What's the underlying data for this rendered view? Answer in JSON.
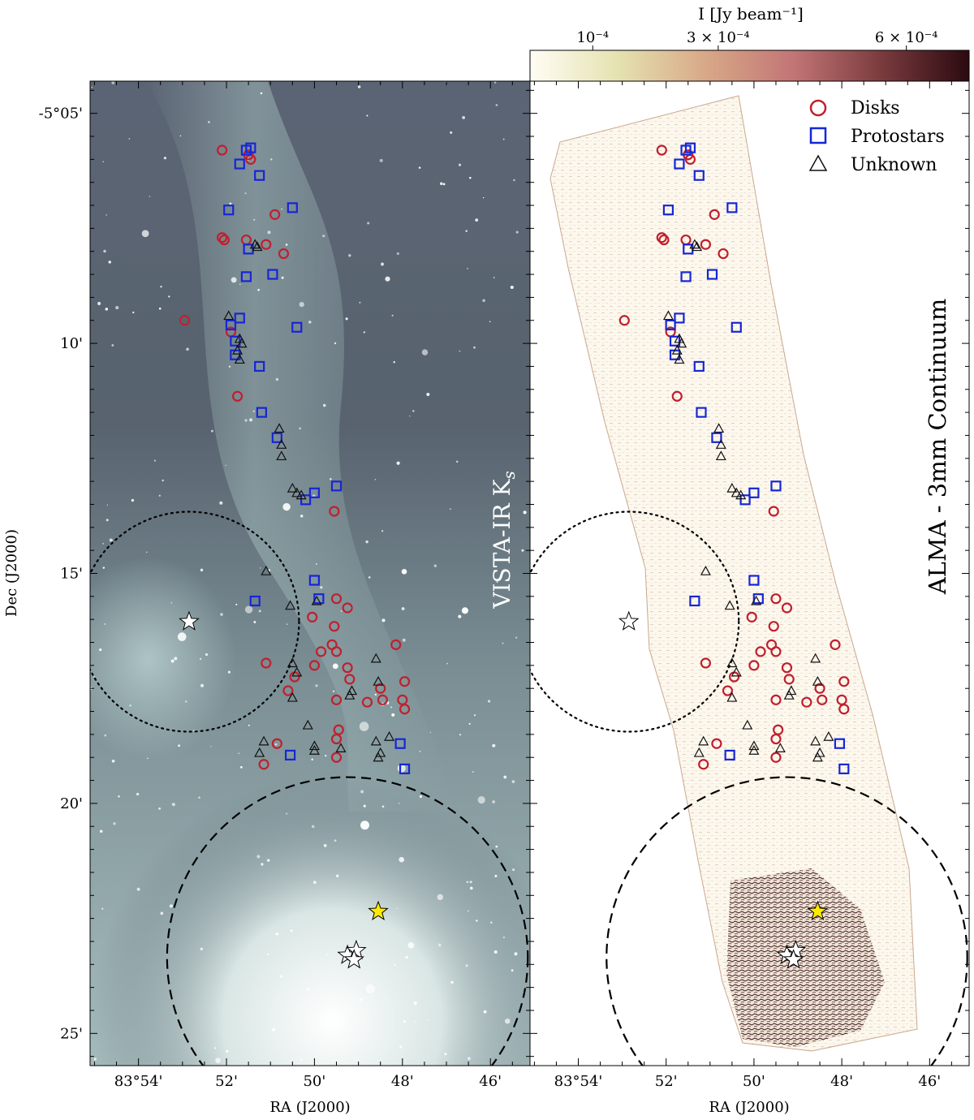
{
  "chart_data": {
    "type": "scatter",
    "colorbar": {
      "label": "I [Jy beam⁻¹]",
      "range": [
        0,
        0.0007
      ],
      "ticks": [
        {
          "value": 0.0001,
          "label": "10⁻⁴"
        },
        {
          "value": 0.0003,
          "label": "3 × 10⁻⁴"
        },
        {
          "value": 0.0006,
          "label": "6 × 10⁻⁴"
        }
      ],
      "colors": [
        "#fffdf4",
        "#e5e2b0",
        "#d8a888",
        "#c27575",
        "#7a3b3e",
        "#2b0a10"
      ]
    },
    "panels": [
      {
        "id": "left",
        "label": "VISTA-IR K",
        "label_sub": "s"
      },
      {
        "id": "right",
        "label": "ALMA - 3mm Continuum"
      }
    ],
    "axes": {
      "xlabel": "RA (J2000)",
      "ylabel": "Dec (J2000)",
      "xlim_arcmin": [
        55.1,
        45.1
      ],
      "ylim_arcmin": [
        4.3,
        25.7
      ],
      "x_ticks": [
        {
          "value": 54,
          "label": "83°54'"
        },
        {
          "value": 52,
          "label": "52'"
        },
        {
          "value": 50,
          "label": "50'"
        },
        {
          "value": 48,
          "label": "48'"
        },
        {
          "value": 46,
          "label": "46'"
        }
      ],
      "y_ticks": [
        {
          "value": 5,
          "label": "-5°05'"
        },
        {
          "value": 10,
          "label": "10'"
        },
        {
          "value": 15,
          "label": "15'"
        },
        {
          "value": 20,
          "label": "20'"
        },
        {
          "value": 25,
          "label": "25'"
        }
      ]
    },
    "legend": {
      "position": "top-right",
      "entries": [
        {
          "name": "Disks",
          "marker": "circle",
          "color": "#c0202e"
        },
        {
          "name": "Protostars",
          "marker": "square",
          "color": "#1626d6"
        },
        {
          "name": "Unknown",
          "marker": "triangle",
          "color": "#111111"
        }
      ]
    },
    "regions": [
      {
        "style": "dotted",
        "center_ra": 52.85,
        "center_dec": 16.05,
        "radius_arcmin": 2.5
      },
      {
        "style": "dashed",
        "center_ra": 49.25,
        "center_dec": 23.35,
        "radius_arcmin": 4.1
      }
    ],
    "stars": [
      {
        "ra": 52.85,
        "dec": 16.05,
        "fill": "#ffffff"
      },
      {
        "ra": 48.55,
        "dec": 22.35,
        "fill": "#ffeb00"
      },
      {
        "ra": 49.25,
        "dec": 23.3,
        "fill": "#ffffff"
      },
      {
        "ra": 49.05,
        "dec": 23.2,
        "fill": "#ffffff"
      },
      {
        "ra": 49.1,
        "dec": 23.4,
        "fill": "#ffffff"
      }
    ],
    "series": [
      {
        "name": "Disks",
        "marker": "circle",
        "points": [
          [
            52.1,
            5.8
          ],
          [
            51.45,
            6.0
          ],
          [
            51.5,
            5.9
          ],
          [
            50.9,
            7.2
          ],
          [
            52.05,
            7.75
          ],
          [
            52.1,
            7.7
          ],
          [
            51.55,
            7.75
          ],
          [
            51.1,
            7.85
          ],
          [
            50.7,
            8.05
          ],
          [
            52.95,
            9.5
          ],
          [
            51.9,
            9.75
          ],
          [
            51.75,
            11.15
          ],
          [
            49.55,
            13.65
          ],
          [
            50.05,
            15.95
          ],
          [
            49.5,
            15.55
          ],
          [
            49.25,
            15.75
          ],
          [
            49.55,
            16.15
          ],
          [
            49.85,
            16.7
          ],
          [
            49.6,
            16.55
          ],
          [
            49.5,
            16.7
          ],
          [
            50.0,
            17.0
          ],
          [
            48.15,
            16.55
          ],
          [
            51.1,
            16.95
          ],
          [
            50.45,
            17.25
          ],
          [
            50.6,
            17.55
          ],
          [
            49.25,
            17.05
          ],
          [
            49.2,
            17.3
          ],
          [
            49.5,
            17.75
          ],
          [
            48.8,
            17.8
          ],
          [
            48.5,
            17.5
          ],
          [
            48.45,
            17.75
          ],
          [
            47.95,
            17.35
          ],
          [
            48.0,
            17.75
          ],
          [
            47.95,
            17.95
          ],
          [
            49.45,
            18.4
          ],
          [
            49.5,
            18.6
          ],
          [
            50.85,
            18.7
          ],
          [
            51.15,
            19.15
          ],
          [
            49.5,
            19.0
          ]
        ]
      },
      {
        "name": "Protostars",
        "marker": "square",
        "points": [
          [
            51.55,
            5.8
          ],
          [
            51.45,
            5.75
          ],
          [
            51.7,
            6.1
          ],
          [
            51.25,
            6.35
          ],
          [
            51.95,
            7.1
          ],
          [
            50.5,
            7.05
          ],
          [
            51.5,
            7.95
          ],
          [
            50.95,
            8.5
          ],
          [
            51.55,
            8.55
          ],
          [
            51.7,
            9.45
          ],
          [
            51.9,
            9.6
          ],
          [
            50.4,
            9.65
          ],
          [
            51.8,
            9.95
          ],
          [
            51.8,
            10.25
          ],
          [
            51.25,
            10.5
          ],
          [
            51.2,
            11.5
          ],
          [
            50.85,
            12.05
          ],
          [
            49.5,
            13.1
          ],
          [
            50.0,
            13.25
          ],
          [
            50.2,
            13.4
          ],
          [
            50.0,
            15.15
          ],
          [
            51.35,
            15.6
          ],
          [
            49.9,
            15.55
          ],
          [
            48.05,
            18.7
          ],
          [
            50.55,
            18.95
          ],
          [
            47.95,
            19.25
          ]
        ]
      },
      {
        "name": "Unknown",
        "marker": "triangle",
        "points": [
          [
            51.35,
            7.85
          ],
          [
            51.3,
            7.9
          ],
          [
            51.95,
            9.4
          ],
          [
            51.7,
            9.9
          ],
          [
            51.65,
            10.0
          ],
          [
            51.75,
            10.15
          ],
          [
            51.7,
            10.35
          ],
          [
            50.8,
            11.85
          ],
          [
            50.75,
            12.2
          ],
          [
            50.75,
            12.45
          ],
          [
            50.5,
            13.15
          ],
          [
            50.4,
            13.25
          ],
          [
            50.3,
            13.3
          ],
          [
            51.1,
            14.95
          ],
          [
            50.55,
            15.7
          ],
          [
            49.95,
            15.6
          ],
          [
            50.5,
            16.95
          ],
          [
            50.4,
            17.15
          ],
          [
            50.5,
            17.7
          ],
          [
            48.6,
            16.85
          ],
          [
            48.55,
            17.35
          ],
          [
            49.15,
            17.55
          ],
          [
            49.2,
            17.65
          ],
          [
            50.15,
            18.3
          ],
          [
            51.15,
            18.65
          ],
          [
            51.25,
            18.9
          ],
          [
            50.0,
            18.75
          ],
          [
            50.0,
            18.85
          ],
          [
            49.4,
            18.8
          ],
          [
            48.6,
            18.65
          ],
          [
            48.5,
            18.9
          ],
          [
            48.55,
            19.0
          ],
          [
            48.3,
            18.55
          ]
        ]
      }
    ]
  }
}
